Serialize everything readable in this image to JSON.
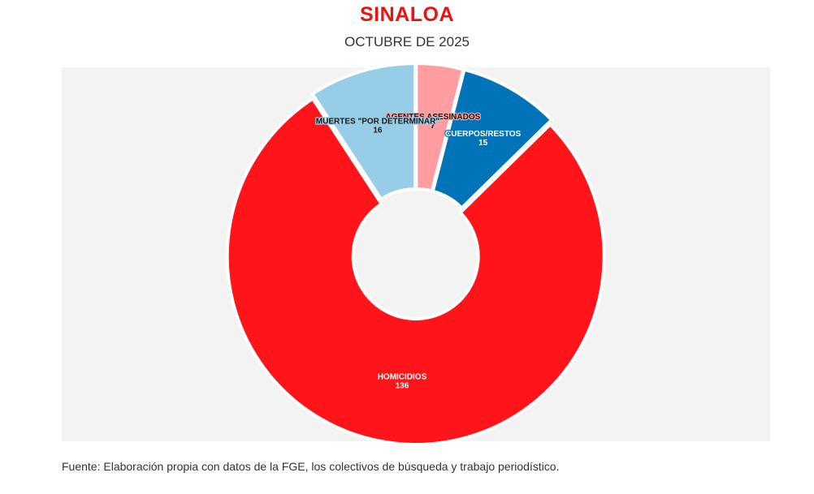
{
  "chart_data": {
    "type": "pie",
    "variant": "donut",
    "title": "SINALOA",
    "subtitle": "OCTUBRE DE 2025",
    "slices": [
      {
        "label": "AGENTES ASESINADOS",
        "value": 7,
        "color": "#ff9da1",
        "text_color": "#1a1a1a",
        "halo_color": "#ff9da1"
      },
      {
        "label": "CUERPOS/RESTOS",
        "value": 15,
        "color": "#0173b8",
        "text_color": "#ffffff",
        "halo_color": "#0173b8"
      },
      {
        "label": "HOMICIDIOS",
        "value": 136,
        "color": "#ff1519",
        "text_color": "#ffffff",
        "halo_color": "#ff1519"
      },
      {
        "label": "MUERTES \"POR DETERMINAR\"",
        "value": 16,
        "color": "#97cde6",
        "text_color": "#1a1a1a",
        "halo_color": "#97cde6"
      }
    ],
    "background_color": "#f3f3f3",
    "title_color": "#ee1111"
  },
  "footer": {
    "source": "Fuente: Elaboración propia con datos de la FGE, los colectivos de búsqueda y trabajo periodístico."
  }
}
